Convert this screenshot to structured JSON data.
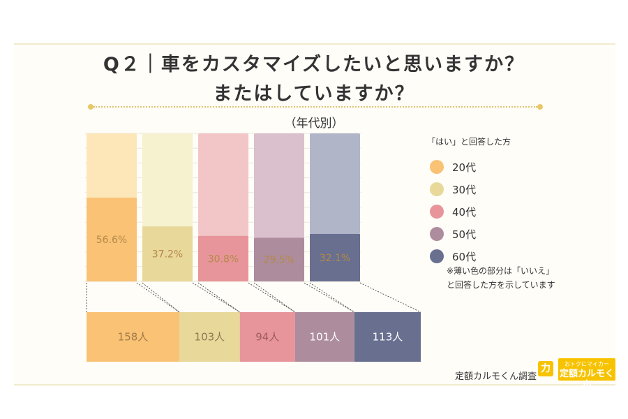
{
  "title": {
    "line1": "Q２｜車をカスタマイズしたいと思いますか？",
    "line2": "またはしていますか？"
  },
  "subtitle": "（年代別）",
  "legend": {
    "title": "「はい」と回答した方",
    "items": [
      {
        "label": "20代",
        "color": "#f9c274"
      },
      {
        "label": "30代",
        "color": "#e8d89a"
      },
      {
        "label": "40代",
        "color": "#e7959a"
      },
      {
        "label": "50代",
        "color": "#ad8c9d"
      },
      {
        "label": "60代",
        "color": "#686f8f"
      }
    ],
    "note_line1": "※薄い色の部分は「いいえ」",
    "note_line2": "と回答した方を示しています"
  },
  "chart_data": [
    {
      "type": "bar",
      "stacked": true,
      "categories": [
        "20代",
        "30代",
        "40代",
        "50代",
        "60代"
      ],
      "series": [
        {
          "name": "はい",
          "values": [
            56.6,
            37.2,
            30.8,
            29.5,
            32.1
          ],
          "colors": [
            "#f9c274",
            "#e8d89a",
            "#e7959a",
            "#ad8c9d",
            "#686f8f"
          ]
        },
        {
          "name": "いいえ",
          "values": [
            43.4,
            62.8,
            69.2,
            70.5,
            67.9
          ],
          "colors": [
            "#fde6b8",
            "#f6f1cf",
            "#f2c6c7",
            "#d9c0cc",
            "#b1b5c8"
          ]
        }
      ],
      "data_labels": [
        "56.6%",
        "37.2%",
        "30.8%",
        "29.5%",
        "32.1%"
      ],
      "ylim": [
        0,
        100
      ],
      "grid": true,
      "label_color": "#b5894a"
    },
    {
      "type": "bar",
      "stacked": true,
      "orientation": "horizontal",
      "categories": [
        "20代",
        "30代",
        "40代",
        "50代",
        "60代"
      ],
      "values": [
        158,
        103,
        94,
        101,
        113
      ],
      "data_labels": [
        "158人",
        "103人",
        "94人",
        "101人",
        "113人"
      ],
      "colors": [
        "#f9c274",
        "#e8d89a",
        "#e7959a",
        "#ad8c9d",
        "#686f8f"
      ],
      "label_colors": [
        "#a07a4a",
        "#8b7a52",
        "#a05c5f",
        "#ffffff",
        "#ffffff"
      ]
    }
  ],
  "footer": {
    "survey_label": "定額カルモくん調査",
    "logo_mark": "力",
    "brand_line1": "おトクにマイカー",
    "brand_line2": "定額カルモくん"
  }
}
